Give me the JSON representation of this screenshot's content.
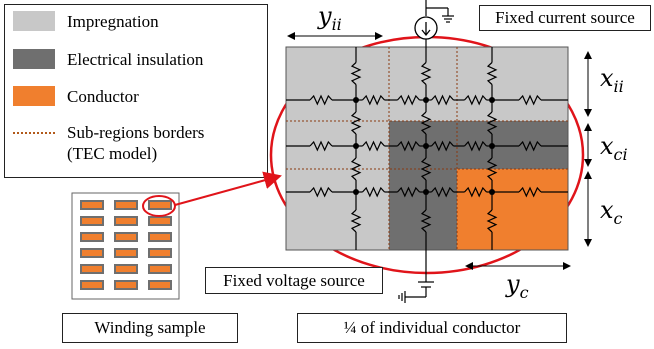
{
  "legend": {
    "items": [
      {
        "label": "Impregnation",
        "color": "#c8c8c8"
      },
      {
        "label": "Electrical insulation",
        "color": "#6f6f6f"
      },
      {
        "label": "Conductor",
        "color": "#f07f2e"
      }
    ],
    "borders_label_line1": "Sub-regions borders",
    "borders_label_line2": "(TEC model)",
    "borders_color": "#b25a1b"
  },
  "labels": {
    "current_source": "Fixed current source",
    "voltage_source": "Fixed voltage source",
    "winding_sample": "Winding sample",
    "quarter_conductor": "¼ of individual conductor"
  },
  "dimensions": {
    "y_ii": {
      "base": "y",
      "sub": "ii"
    },
    "x_ii": {
      "base": "x",
      "sub": "ii"
    },
    "x_ci": {
      "base": "x",
      "sub": "ci"
    },
    "x_c": {
      "base": "x",
      "sub": "c"
    },
    "y_c": {
      "base": "y",
      "sub": "c"
    }
  },
  "colors": {
    "impregnation": "#c8c8c8",
    "insulation": "#6f6f6f",
    "conductor": "#f07f2e",
    "highlight": "#e0141a"
  }
}
